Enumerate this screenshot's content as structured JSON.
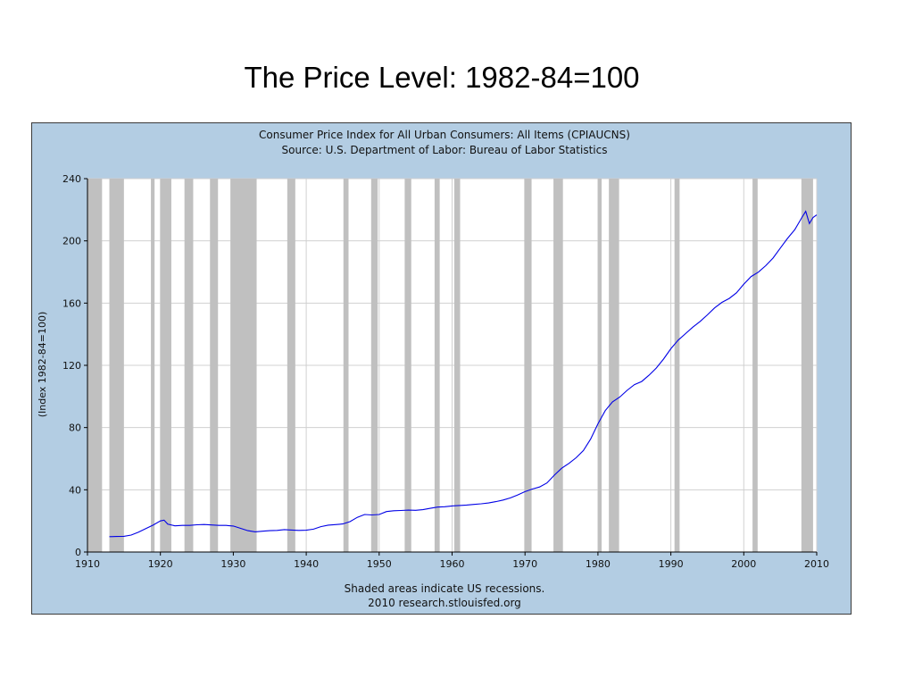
{
  "slide": {
    "title": "The Price Level:  1982-84=100"
  },
  "chart_data": {
    "type": "line",
    "title": "Consumer Price Index for All Urban Consumers: All Items (CPIAUCNS)",
    "subtitle": "Source: U.S. Department of Labor: Bureau of Labor Statistics",
    "ylabel": "(Index 1982-84=100)",
    "xlabel": "",
    "xlim": [
      1910,
      2010
    ],
    "ylim": [
      0,
      240
    ],
    "x_ticks": [
      "1910",
      "1920",
      "1930",
      "1940",
      "1950",
      "1960",
      "1970",
      "1980",
      "1990",
      "2000",
      "2010"
    ],
    "y_ticks": [
      "0",
      "40",
      "80",
      "120",
      "160",
      "200",
      "240"
    ],
    "grid": true,
    "footnote": "Shaded areas indicate US recessions.",
    "credit": "2010 research.stlouisfed.org",
    "colors": {
      "line": "#0000e6",
      "recession": "#c0c0c0",
      "frame": "#b3cde3",
      "grid": "#d0d0d0"
    },
    "recessions": [
      [
        1910.0,
        1912.0
      ],
      [
        1913.0,
        1915.0
      ],
      [
        1918.7,
        1919.2
      ],
      [
        1920.0,
        1921.5
      ],
      [
        1923.3,
        1924.5
      ],
      [
        1926.8,
        1927.9
      ],
      [
        1929.6,
        1933.2
      ],
      [
        1937.4,
        1938.5
      ],
      [
        1945.1,
        1945.8
      ],
      [
        1948.9,
        1949.8
      ],
      [
        1953.5,
        1954.4
      ],
      [
        1957.6,
        1958.3
      ],
      [
        1960.3,
        1961.1
      ],
      [
        1969.9,
        1970.9
      ],
      [
        1973.9,
        1975.2
      ],
      [
        1980.0,
        1980.5
      ],
      [
        1981.5,
        1982.9
      ],
      [
        1990.5,
        1991.2
      ],
      [
        2001.2,
        2001.9
      ],
      [
        2007.9,
        2009.5
      ]
    ],
    "series": [
      {
        "x": [
          1913,
          1914,
          1915,
          1916,
          1917,
          1918,
          1919,
          1920,
          1920.5,
          1921,
          1922,
          1923,
          1924,
          1925,
          1926,
          1927,
          1928,
          1929,
          1930,
          1931,
          1932,
          1933,
          1934,
          1935,
          1936,
          1937,
          1938,
          1939,
          1940,
          1941,
          1942,
          1943,
          1944,
          1945,
          1946,
          1947,
          1948,
          1949,
          1950,
          1951,
          1952,
          1953,
          1954,
          1955,
          1956,
          1957,
          1958,
          1959,
          1960,
          1961,
          1962,
          1963,
          1964,
          1965,
          1966,
          1967,
          1968,
          1969,
          1970,
          1971,
          1972,
          1973,
          1974,
          1975,
          1976,
          1977,
          1978,
          1979,
          1980,
          1981,
          1982,
          1983,
          1984,
          1985,
          1986,
          1987,
          1988,
          1989,
          1990,
          1991,
          1992,
          1993,
          1994,
          1995,
          1996,
          1997,
          1998,
          1999,
          2000,
          2001,
          2002,
          2003,
          2004,
          2005,
          2006,
          2007,
          2008,
          2008.5,
          2009,
          2009.5,
          2010
        ],
        "values": [
          9.9,
          10.0,
          10.1,
          10.9,
          12.8,
          15.1,
          17.3,
          20.0,
          20.5,
          17.9,
          16.8,
          17.1,
          17.1,
          17.5,
          17.7,
          17.4,
          17.1,
          17.1,
          16.7,
          15.2,
          13.7,
          13.0,
          13.4,
          13.7,
          13.9,
          14.4,
          14.1,
          13.9,
          14.0,
          14.7,
          16.3,
          17.3,
          17.6,
          18.0,
          19.5,
          22.3,
          24.1,
          23.8,
          24.1,
          26.0,
          26.5,
          26.7,
          26.9,
          26.8,
          27.2,
          28.1,
          28.9,
          29.1,
          29.6,
          29.9,
          30.2,
          30.6,
          31.0,
          31.5,
          32.4,
          33.4,
          34.8,
          36.7,
          38.8,
          40.5,
          41.8,
          44.4,
          49.3,
          53.8,
          56.9,
          60.6,
          65.2,
          72.6,
          82.4,
          90.9,
          96.5,
          99.6,
          103.9,
          107.6,
          109.6,
          113.6,
          118.3,
          124.0,
          130.7,
          136.2,
          140.3,
          144.5,
          148.2,
          152.4,
          156.9,
          160.5,
          163.0,
          166.6,
          172.2,
          177.1,
          179.9,
          184.0,
          188.9,
          195.3,
          201.6,
          207.3,
          215.3,
          219.0,
          211.1,
          215.0,
          216.7
        ]
      }
    ]
  }
}
